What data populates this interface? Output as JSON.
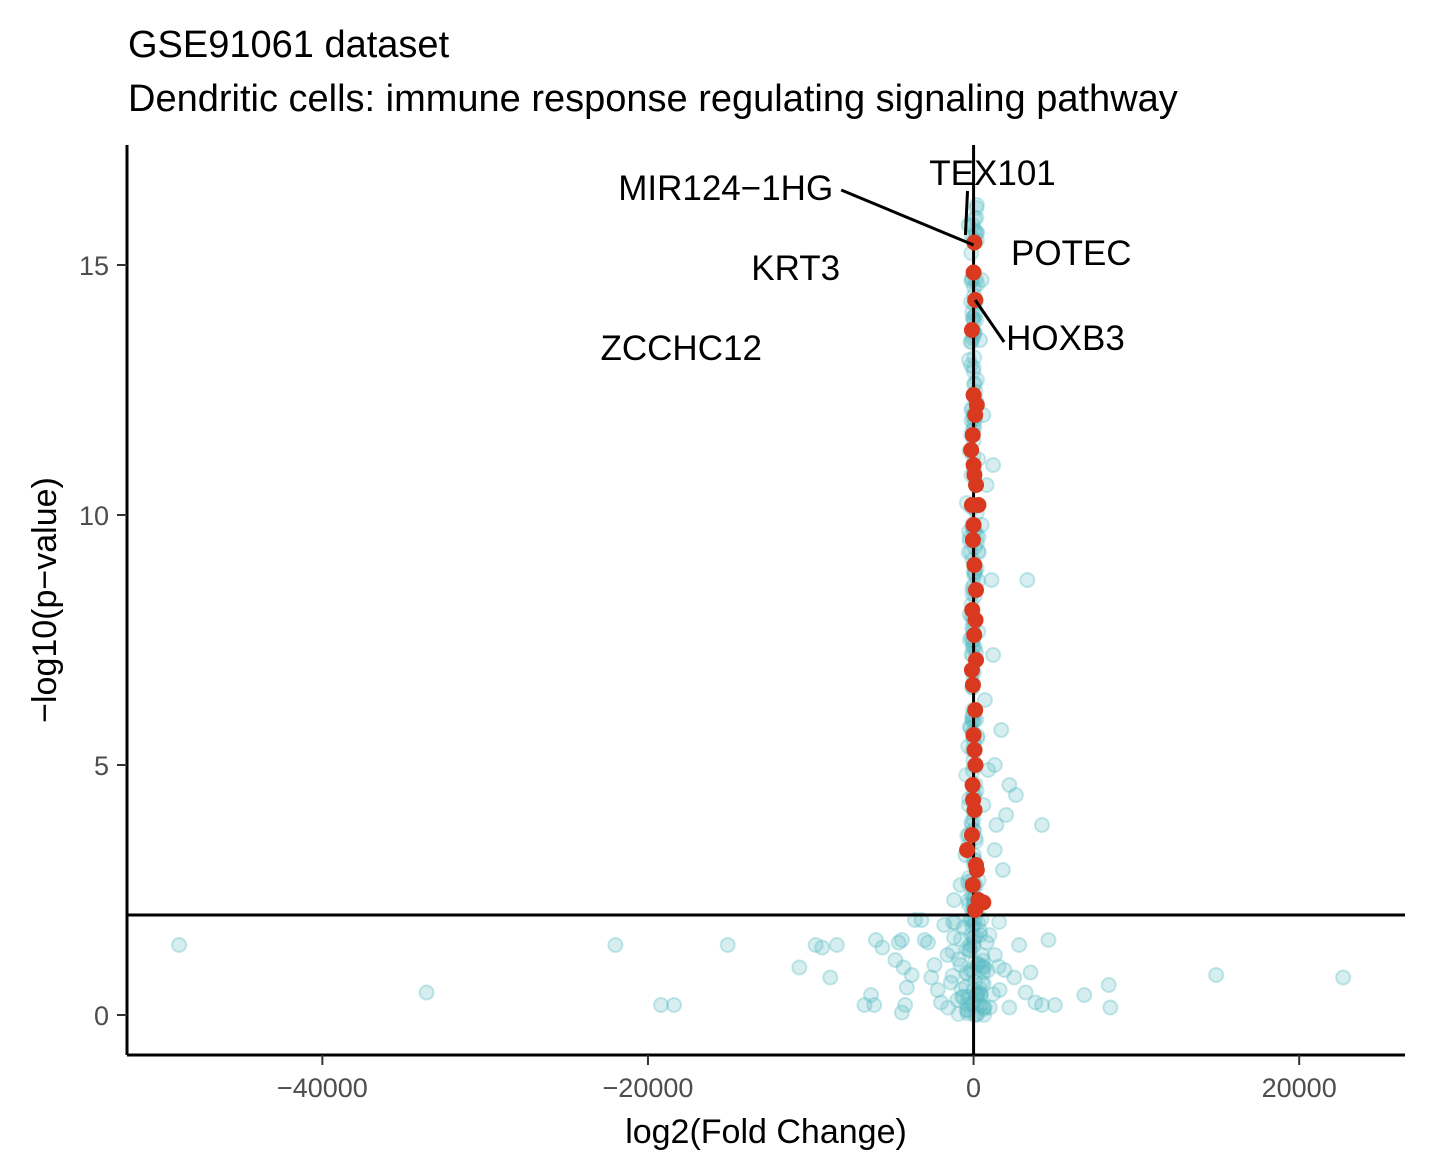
{
  "chart_data": {
    "type": "scatter",
    "title": "GSE91061 dataset",
    "subtitle": "Dendritic cells: immune response regulating signaling pathway",
    "xlabel": "log2(Fold Change)",
    "ylabel": "−log10(p−value)",
    "xlim": [
      -52000,
      26500
    ],
    "ylim": [
      -0.8,
      17.4
    ],
    "x_ticks": [
      {
        "value": -40000,
        "label": "−40000"
      },
      {
        "value": -20000,
        "label": "−20000"
      },
      {
        "value": 0,
        "label": "0"
      },
      {
        "value": 20000,
        "label": "20000"
      }
    ],
    "y_ticks": [
      {
        "value": 0,
        "label": "0"
      },
      {
        "value": 5,
        "label": "5"
      },
      {
        "value": 10,
        "label": "10"
      },
      {
        "value": 15,
        "label": "15"
      }
    ],
    "reference_lines": {
      "vertical_x": 0,
      "horizontal_y": 2
    },
    "grid": false,
    "colors": {
      "background_points": "#5bbcc4",
      "highlight_points": "#d93a1f",
      "axis": "#000000"
    },
    "series": [
      {
        "role": "all_genes",
        "points": [
          [
            -48800,
            1.4
          ],
          [
            -33600,
            0.45
          ],
          [
            -22000,
            1.4
          ],
          [
            -19200,
            0.2
          ],
          [
            -18400,
            0.2
          ],
          [
            -15100,
            1.4
          ],
          [
            -10700,
            0.95
          ],
          [
            -9700,
            1.4
          ],
          [
            -9300,
            1.35
          ],
          [
            -8800,
            0.75
          ],
          [
            -8400,
            1.4
          ],
          [
            -6700,
            0.2
          ],
          [
            -6300,
            0.4
          ],
          [
            -6100,
            0.2
          ],
          [
            -6000,
            1.5
          ],
          [
            -5600,
            1.35
          ],
          [
            -4800,
            1.1
          ],
          [
            -4600,
            1.45
          ],
          [
            -4200,
            0.2
          ],
          [
            -4400,
            1.5
          ],
          [
            -4300,
            0.95
          ],
          [
            -3800,
            0.8
          ],
          [
            -4100,
            0.55
          ],
          [
            -3600,
            1.9
          ],
          [
            -3200,
            1.9
          ],
          [
            -4400,
            0.05
          ],
          [
            -3000,
            1.5
          ],
          [
            -2800,
            1.45
          ],
          [
            -2600,
            0.75
          ],
          [
            -2400,
            1.0
          ],
          [
            -2200,
            0.5
          ],
          [
            -2000,
            0.25
          ],
          [
            -1800,
            1.8
          ],
          [
            -1600,
            1.2
          ],
          [
            -1400,
            0.65
          ],
          [
            -1200,
            1.55
          ],
          [
            -1000,
            0.3
          ],
          [
            -800,
            1.0
          ],
          [
            -600,
            1.75
          ],
          [
            -400,
            0.1
          ],
          [
            -200,
            1.3
          ],
          [
            200,
            0.4
          ],
          [
            400,
            1.6
          ],
          [
            600,
            0.85
          ],
          [
            800,
            1.45
          ],
          [
            1000,
            0.15
          ],
          [
            1300,
            1.2
          ],
          [
            1600,
            0.5
          ],
          [
            1900,
            0.9
          ],
          [
            2200,
            0.15
          ],
          [
            2500,
            0.75
          ],
          [
            2800,
            1.4
          ],
          [
            3200,
            0.45
          ],
          [
            3500,
            0.85
          ],
          [
            3800,
            0.25
          ],
          [
            4200,
            0.2
          ],
          [
            4600,
            1.5
          ],
          [
            5000,
            0.2
          ],
          [
            6800,
            0.4
          ],
          [
            8300,
            0.6
          ],
          [
            8400,
            0.15
          ],
          [
            14900,
            0.8
          ],
          [
            22700,
            0.75
          ],
          [
            -1200,
            2.3
          ],
          [
            -800,
            2.6
          ],
          [
            -500,
            3.2
          ],
          [
            -300,
            3.6
          ],
          [
            1800,
            2.9
          ],
          [
            1300,
            3.3
          ],
          [
            600,
            4.2
          ],
          [
            900,
            4.9
          ],
          [
            1400,
            3.8
          ],
          [
            2200,
            4.6
          ],
          [
            1300,
            5.0
          ],
          [
            2000,
            4.0
          ],
          [
            2600,
            4.4
          ],
          [
            4200,
            3.8
          ],
          [
            1700,
            5.7
          ],
          [
            1200,
            7.2
          ],
          [
            1100,
            8.7
          ],
          [
            3300,
            8.7
          ],
          [
            1200,
            11.0
          ],
          [
            600,
            12.0
          ],
          [
            400,
            13.5
          ],
          [
            200,
            16.2
          ],
          [
            500,
            9.8
          ],
          [
            700,
            6.3
          ],
          [
            800,
            10.6
          ],
          [
            500,
            14.7
          ],
          [
            -300,
            15.8
          ],
          [
            100,
            14.0
          ]
        ]
      },
      {
        "role": "significant_pathway_genes",
        "points": [
          [
            50,
            15.45
          ],
          [
            0,
            14.85
          ],
          [
            100,
            14.3
          ],
          [
            -100,
            13.7
          ],
          [
            0,
            12.4
          ],
          [
            100,
            12.0
          ],
          [
            -50,
            11.6
          ],
          [
            0,
            11.0
          ],
          [
            150,
            10.6
          ],
          [
            -100,
            10.2
          ],
          [
            300,
            10.2
          ],
          [
            0,
            9.8
          ],
          [
            50,
            9.0
          ],
          [
            150,
            8.5
          ],
          [
            -80,
            8.1
          ],
          [
            40,
            7.6
          ],
          [
            150,
            7.1
          ],
          [
            -40,
            6.6
          ],
          [
            100,
            6.1
          ],
          [
            0,
            5.6
          ],
          [
            120,
            5.0
          ],
          [
            -60,
            4.6
          ],
          [
            60,
            4.1
          ],
          [
            -100,
            3.6
          ],
          [
            -400,
            3.3
          ],
          [
            200,
            2.9
          ],
          [
            -50,
            2.6
          ],
          [
            300,
            2.3
          ],
          [
            600,
            2.25
          ],
          [
            100,
            2.1
          ],
          [
            200,
            12.2
          ],
          [
            -150,
            11.3
          ],
          [
            50,
            10.8
          ],
          [
            -40,
            9.5
          ],
          [
            120,
            7.9
          ],
          [
            -100,
            6.9
          ],
          [
            60,
            5.3
          ],
          [
            -30,
            4.3
          ],
          [
            150,
            3.0
          ]
        ]
      }
    ],
    "labels": [
      {
        "text": "MIR124−1HG",
        "x": -8500,
        "y": 16.3,
        "point_x": 0,
        "point_y": 15.4
      },
      {
        "text": "TEX101",
        "x": -1600,
        "y": 16.6,
        "point_x": -500,
        "point_y": 15.6
      },
      {
        "text": "POTEC",
        "x": 2300,
        "y": 15.0,
        "point_x": null,
        "point_y": null
      },
      {
        "text": "KRT3",
        "x": -8200,
        "y": 14.7,
        "point_x": null,
        "point_y": null
      },
      {
        "text": "HOXB3",
        "x": 2000,
        "y": 13.3,
        "point_x": 100,
        "point_y": 14.3
      },
      {
        "text": "ZCCHC12",
        "x": -13000,
        "y": 13.1,
        "point_x": null,
        "point_y": null
      }
    ]
  }
}
